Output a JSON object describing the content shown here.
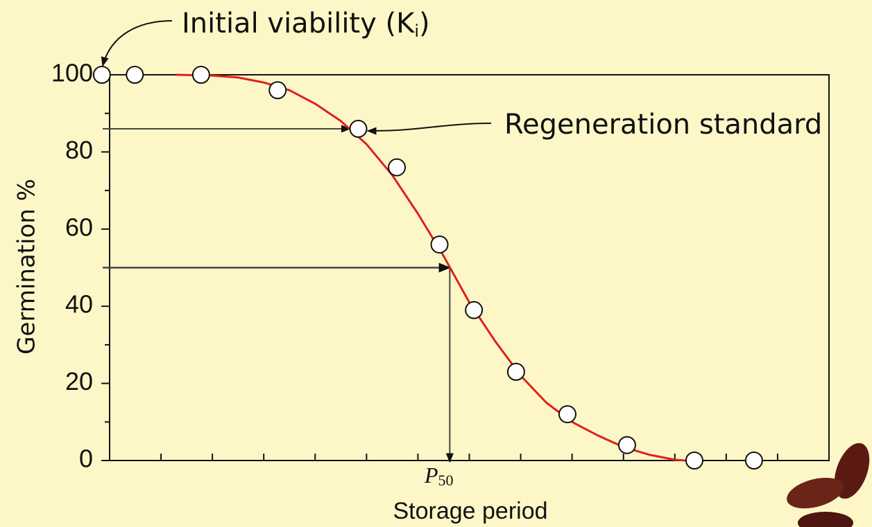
{
  "chart_data": {
    "type": "scatter",
    "xlabel": "Storage period",
    "ylabel": "Germination  %",
    "xlim": [
      0,
      14
    ],
    "xticks": [
      0,
      1,
      2,
      3,
      4,
      5,
      6,
      7,
      8,
      9,
      10,
      11,
      12,
      13,
      14
    ],
    "ylim": [
      0,
      100
    ],
    "yticks": [
      0,
      20,
      40,
      60,
      80,
      100
    ],
    "yminorticks": [
      10,
      30,
      50,
      70,
      90
    ],
    "x": [
      -0.15,
      0.49,
      1.78,
      3.27,
      4.84,
      5.59,
      6.42,
      7.09,
      7.91,
      8.91,
      10.07,
      11.38,
      12.54
    ],
    "values": [
      100,
      100,
      100,
      96,
      86,
      76,
      56,
      39,
      23,
      12,
      4,
      0,
      0
    ],
    "marker_color": "#ffffff",
    "curve": {
      "color": "#e0201b",
      "x": [
        1.3,
        2,
        2.5,
        3,
        3.5,
        4,
        4.5,
        5,
        5.5,
        6,
        6.5,
        7,
        7.5,
        8,
        8.5,
        9,
        9.5,
        10,
        10.5,
        11,
        11.2
      ],
      "values": [
        100,
        99.8,
        99.3,
        98,
        96,
        92.5,
        88,
        82,
        74,
        64,
        53,
        41,
        31,
        22,
        15,
        10,
        6.5,
        3.5,
        1.5,
        0.2,
        0
      ]
    },
    "regeneration_standard": {
      "label": "Regeneration standard",
      "y": 86,
      "x": 4.84
    },
    "p50": {
      "text": "P",
      "subscript": "50",
      "x": 6.62,
      "y": 50
    },
    "initial_viability": {
      "text": "Initial viability (K",
      "subscript": "i",
      "suffix": ")"
    }
  }
}
